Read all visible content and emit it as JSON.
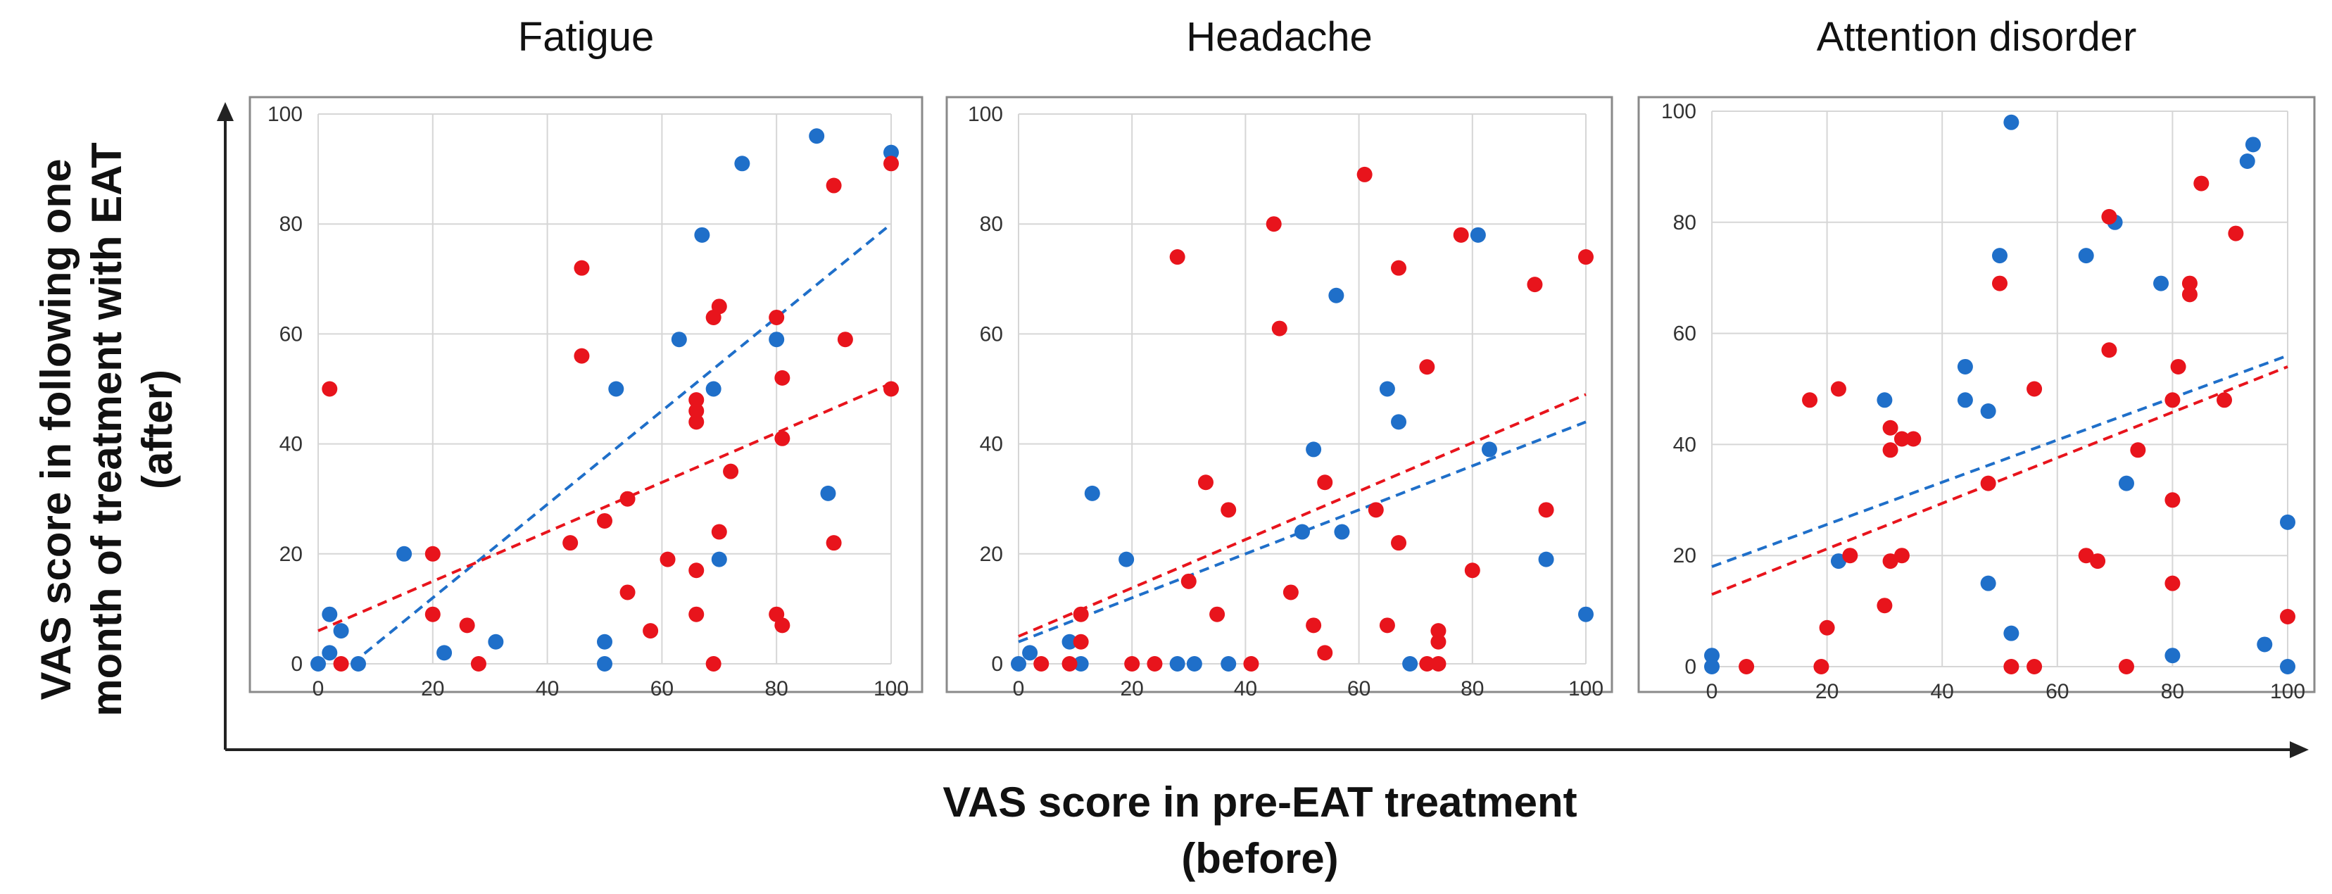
{
  "figure": {
    "xlabel_line1": "VAS score in pre-EAT treatment",
    "xlabel_line2": "(before)",
    "ylabel_line1": "VAS score in following one",
    "ylabel_line2": "month of treatment with EAT",
    "ylabel_line3": "(after)"
  },
  "colors": {
    "blue": "#1f6fc9",
    "red": "#e8141c"
  },
  "chart_data": [
    {
      "type": "scatter",
      "title": "Fatigue",
      "xlim": [
        0,
        100
      ],
      "ylim": [
        0,
        100
      ],
      "xticks": [
        0,
        20,
        40,
        60,
        80,
        100
      ],
      "yticks": [
        0,
        20,
        40,
        60,
        80,
        100
      ],
      "grid": true,
      "series": [
        {
          "color": "blue",
          "points": [
            [
              2,
              9
            ],
            [
              4,
              6
            ],
            [
              0,
              0
            ],
            [
              2,
              2
            ],
            [
              7,
              0
            ],
            [
              15,
              20
            ],
            [
              22,
              2
            ],
            [
              31,
              4
            ],
            [
              50,
              4
            ],
            [
              50,
              0
            ],
            [
              52,
              50
            ],
            [
              63,
              59
            ],
            [
              67,
              78
            ],
            [
              69,
              50
            ],
            [
              70,
              19
            ],
            [
              74,
              91
            ],
            [
              80,
              59
            ],
            [
              87,
              96
            ],
            [
              89,
              31
            ],
            [
              100,
              93
            ]
          ],
          "trend": [
            [
              0,
              -5
            ],
            [
              100,
              80
            ]
          ]
        },
        {
          "color": "red",
          "points": [
            [
              2,
              50
            ],
            [
              4,
              0
            ],
            [
              20,
              20
            ],
            [
              20,
              9
            ],
            [
              26,
              7
            ],
            [
              28,
              0
            ],
            [
              44,
              22
            ],
            [
              46,
              72
            ],
            [
              46,
              56
            ],
            [
              50,
              26
            ],
            [
              54,
              13
            ],
            [
              54,
              30
            ],
            [
              58,
              6
            ],
            [
              61,
              19
            ],
            [
              66,
              9
            ],
            [
              66,
              17
            ],
            [
              66,
              48
            ],
            [
              66,
              46
            ],
            [
              66,
              44
            ],
            [
              69,
              63
            ],
            [
              69,
              0
            ],
            [
              70,
              65
            ],
            [
              70,
              24
            ],
            [
              72,
              35
            ],
            [
              80,
              63
            ],
            [
              80,
              9
            ],
            [
              81,
              41
            ],
            [
              81,
              7
            ],
            [
              81,
              52
            ],
            [
              90,
              87
            ],
            [
              90,
              22
            ],
            [
              92,
              59
            ],
            [
              100,
              91
            ],
            [
              100,
              50
            ]
          ],
          "trend": [
            [
              0,
              6
            ],
            [
              100,
              51
            ]
          ]
        }
      ]
    },
    {
      "type": "scatter",
      "title": "Headache",
      "xlim": [
        0,
        100
      ],
      "ylim": [
        0,
        100
      ],
      "xticks": [
        0,
        20,
        40,
        60,
        80,
        100
      ],
      "yticks": [
        0,
        20,
        40,
        60,
        80,
        100
      ],
      "grid": true,
      "series": [
        {
          "color": "blue",
          "points": [
            [
              0,
              0
            ],
            [
              2,
              2
            ],
            [
              9,
              4
            ],
            [
              11,
              0
            ],
            [
              13,
              31
            ],
            [
              19,
              19
            ],
            [
              28,
              0
            ],
            [
              31,
              0
            ],
            [
              37,
              0
            ],
            [
              50,
              24
            ],
            [
              52,
              39
            ],
            [
              56,
              67
            ],
            [
              57,
              24
            ],
            [
              65,
              50
            ],
            [
              67,
              44
            ],
            [
              69,
              0
            ],
            [
              81,
              78
            ],
            [
              83,
              39
            ],
            [
              93,
              19
            ],
            [
              100,
              9
            ]
          ],
          "trend": [
            [
              0,
              4
            ],
            [
              100,
              44
            ]
          ]
        },
        {
          "color": "red",
          "points": [
            [
              4,
              0
            ],
            [
              9,
              0
            ],
            [
              11,
              9
            ],
            [
              11,
              4
            ],
            [
              20,
              0
            ],
            [
              24,
              0
            ],
            [
              28,
              74
            ],
            [
              30,
              15
            ],
            [
              33,
              33
            ],
            [
              35,
              9
            ],
            [
              37,
              28
            ],
            [
              41,
              0
            ],
            [
              45,
              80
            ],
            [
              46,
              61
            ],
            [
              48,
              13
            ],
            [
              52,
              7
            ],
            [
              54,
              2
            ],
            [
              54,
              33
            ],
            [
              61,
              89
            ],
            [
              63,
              28
            ],
            [
              65,
              7
            ],
            [
              67,
              22
            ],
            [
              67,
              72
            ],
            [
              72,
              54
            ],
            [
              72,
              0
            ],
            [
              74,
              6
            ],
            [
              74,
              4
            ],
            [
              74,
              0
            ],
            [
              78,
              78
            ],
            [
              80,
              17
            ],
            [
              91,
              69
            ],
            [
              93,
              28
            ],
            [
              100,
              74
            ]
          ],
          "trend": [
            [
              0,
              5
            ],
            [
              100,
              49
            ]
          ]
        }
      ]
    },
    {
      "type": "scatter",
      "title": "Attention disorder",
      "xlim": [
        0,
        100
      ],
      "ylim": [
        0,
        100
      ],
      "xticks": [
        0,
        20,
        40,
        60,
        80,
        100
      ],
      "yticks": [
        0,
        20,
        40,
        60,
        80,
        100
      ],
      "grid": true,
      "series": [
        {
          "color": "blue",
          "points": [
            [
              0,
              2
            ],
            [
              0,
              0
            ],
            [
              22,
              19
            ],
            [
              30,
              48
            ],
            [
              44,
              54
            ],
            [
              44,
              48
            ],
            [
              48,
              46
            ],
            [
              48,
              15
            ],
            [
              50,
              74
            ],
            [
              52,
              98
            ],
            [
              52,
              6
            ],
            [
              65,
              74
            ],
            [
              70,
              80
            ],
            [
              72,
              33
            ],
            [
              78,
              69
            ],
            [
              80,
              2
            ],
            [
              93,
              91
            ],
            [
              94,
              94
            ],
            [
              96,
              4
            ],
            [
              100,
              26
            ],
            [
              100,
              0
            ]
          ],
          "trend": [
            [
              0,
              18
            ],
            [
              100,
              56
            ]
          ]
        },
        {
          "color": "red",
          "points": [
            [
              6,
              0
            ],
            [
              17,
              48
            ],
            [
              19,
              0
            ],
            [
              20,
              7
            ],
            [
              22,
              50
            ],
            [
              24,
              20
            ],
            [
              30,
              11
            ],
            [
              31,
              43
            ],
            [
              31,
              39
            ],
            [
              31,
              19
            ],
            [
              33,
              41
            ],
            [
              33,
              20
            ],
            [
              35,
              41
            ],
            [
              48,
              33
            ],
            [
              50,
              69
            ],
            [
              52,
              0
            ],
            [
              56,
              50
            ],
            [
              56,
              0
            ],
            [
              65,
              20
            ],
            [
              67,
              19
            ],
            [
              69,
              81
            ],
            [
              69,
              57
            ],
            [
              72,
              0
            ],
            [
              74,
              39
            ],
            [
              80,
              30
            ],
            [
              80,
              15
            ],
            [
              80,
              48
            ],
            [
              81,
              54
            ],
            [
              83,
              69
            ],
            [
              83,
              67
            ],
            [
              85,
              87
            ],
            [
              89,
              48
            ],
            [
              91,
              78
            ],
            [
              100,
              9
            ]
          ],
          "trend": [
            [
              0,
              13
            ],
            [
              100,
              54
            ]
          ]
        }
      ]
    }
  ]
}
